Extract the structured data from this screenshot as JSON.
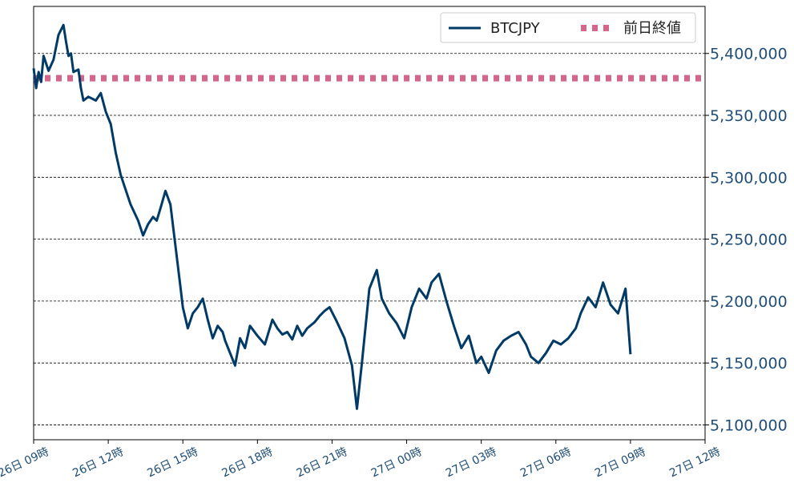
{
  "chart_data": {
    "type": "line",
    "title": "",
    "xlabel": "",
    "ylabel": "",
    "x_ticks": [
      "26日 09時",
      "26日 12時",
      "26日 15時",
      "26日 18時",
      "26日 21時",
      "27日 00時",
      "27日 03時",
      "27日 06時",
      "27日 09時",
      "27日 12時"
    ],
    "x_range_hours": [
      0,
      27
    ],
    "y_ticks": [
      "5,100,000",
      "5,150,000",
      "5,200,000",
      "5,250,000",
      "5,300,000",
      "5,350,000",
      "5,400,000"
    ],
    "ylim": [
      5088000,
      5438000
    ],
    "grid": "horizontal dashed",
    "legend_position": "top-right",
    "colors": {
      "line": "#003a66",
      "reference": "#d4668a",
      "tick_text": "#1f4e79"
    },
    "series": [
      {
        "name": "BTCJPY",
        "style": "solid",
        "x_hours": [
          0,
          0.1,
          0.2,
          0.3,
          0.4,
          0.6,
          0.8,
          0.9,
          1.0,
          1.2,
          1.3,
          1.4,
          1.5,
          1.6,
          1.8,
          1.9,
          2.0,
          2.2,
          2.5,
          2.7,
          2.9,
          3.1,
          3.3,
          3.5,
          3.7,
          3.9,
          4.2,
          4.4,
          4.6,
          4.8,
          4.95,
          5.1,
          5.3,
          5.5,
          5.7,
          5.9,
          6.0,
          6.2,
          6.4,
          6.6,
          6.8,
          7.0,
          7.2,
          7.4,
          7.6,
          7.7,
          7.9,
          8.1,
          8.3,
          8.5,
          8.7,
          9.0,
          9.3,
          9.6,
          9.8,
          10.0,
          10.2,
          10.4,
          10.6,
          10.8,
          11.0,
          11.3,
          11.5,
          11.7,
          11.9,
          12.2,
          12.5,
          12.8,
          13.0,
          13.2,
          13.5,
          13.8,
          14.0,
          14.3,
          14.6,
          14.9,
          15.2,
          15.5,
          15.8,
          16.0,
          16.3,
          16.6,
          16.9,
          17.2,
          17.5,
          17.8,
          18.0,
          18.3,
          18.6,
          18.9,
          19.2,
          19.5,
          19.8,
          20.0,
          20.3,
          20.6,
          20.9,
          21.2,
          21.5,
          21.8,
          22.0,
          22.3,
          22.6,
          22.9,
          23.2,
          23.5,
          23.8,
          24.0
        ],
        "values": [
          5388000,
          5372000,
          5385000,
          5377000,
          5398000,
          5386000,
          5395000,
          5405000,
          5415000,
          5423000,
          5410000,
          5398000,
          5400000,
          5385000,
          5387000,
          5372000,
          5362000,
          5365000,
          5362000,
          5368000,
          5353000,
          5343000,
          5320000,
          5302000,
          5290000,
          5278000,
          5265000,
          5253000,
          5262000,
          5268000,
          5265000,
          5275000,
          5289000,
          5278000,
          5245000,
          5212000,
          5195000,
          5178000,
          5190000,
          5195000,
          5202000,
          5185000,
          5170000,
          5180000,
          5175000,
          5168000,
          5158000,
          5148000,
          5170000,
          5162000,
          5180000,
          5172000,
          5165000,
          5185000,
          5178000,
          5173000,
          5175000,
          5169000,
          5180000,
          5172000,
          5178000,
          5183000,
          5188000,
          5192000,
          5195000,
          5183000,
          5170000,
          5148000,
          5113000,
          5150000,
          5210000,
          5225000,
          5202000,
          5190000,
          5182000,
          5170000,
          5195000,
          5210000,
          5202000,
          5215000,
          5222000,
          5200000,
          5180000,
          5162000,
          5172000,
          5150000,
          5155000,
          5142000,
          5160000,
          5168000,
          5172000,
          5175000,
          5165000,
          5155000,
          5150000,
          5158000,
          5168000,
          5165000,
          5170000,
          5178000,
          5190000,
          5203000,
          5195000,
          5215000,
          5197000,
          5190000,
          5210000,
          5157000
        ]
      },
      {
        "name": "前日終値",
        "style": "dotted",
        "values": [
          5380000
        ]
      }
    ]
  }
}
